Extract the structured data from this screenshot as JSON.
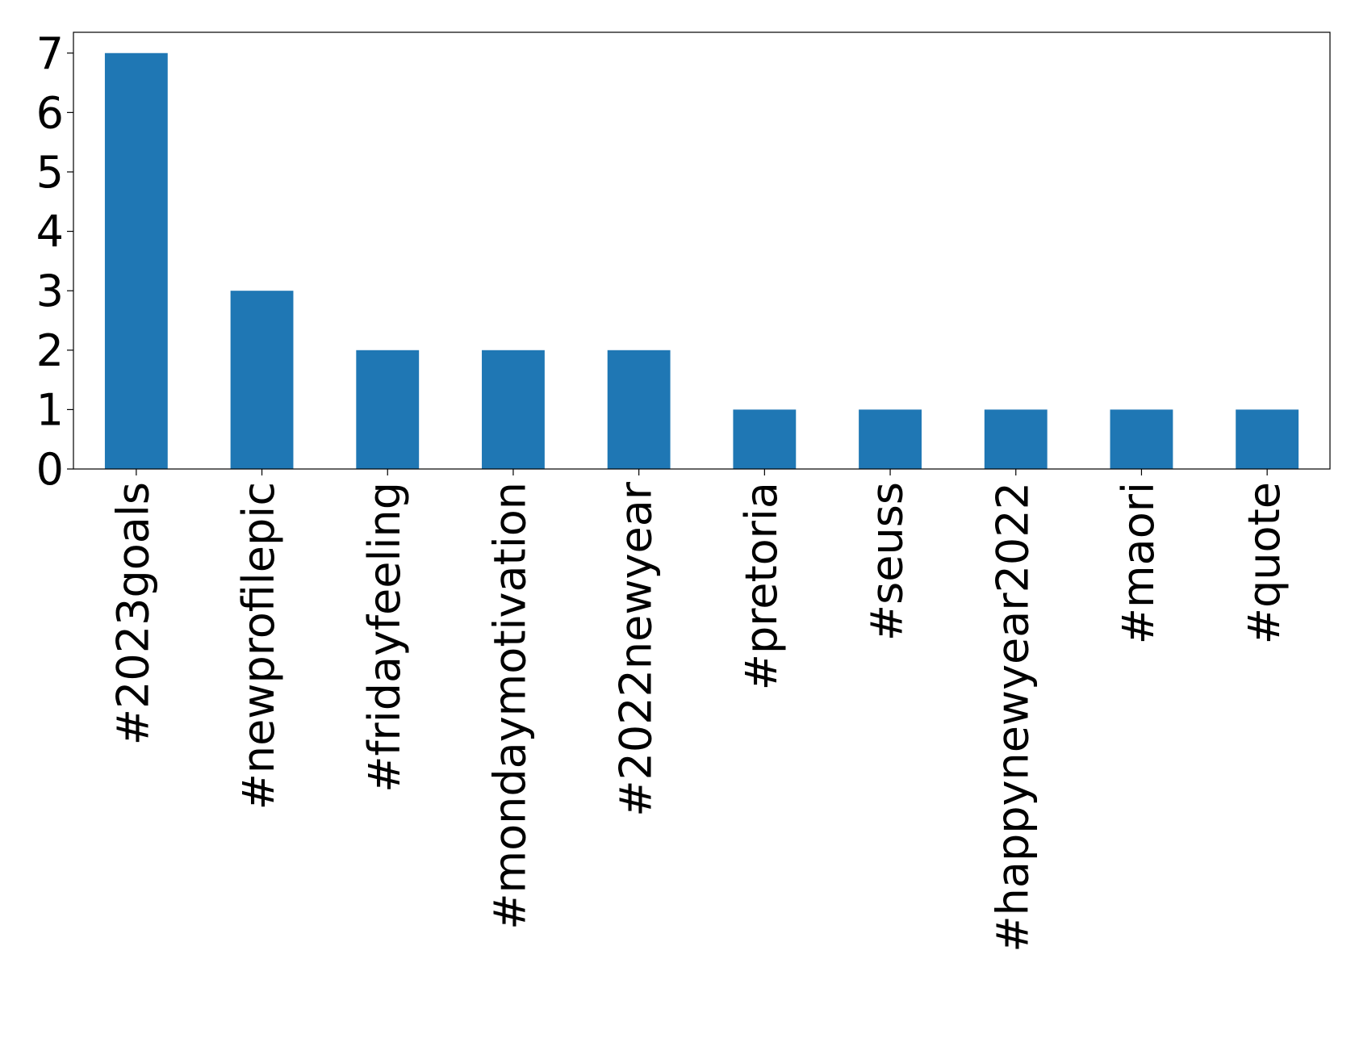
{
  "chart_data": {
    "type": "bar",
    "categories": [
      "#2023goals",
      "#newprofilepic",
      "#fridayfeeling",
      "#mondaymotivation",
      "#2022newyear",
      "#pretoria",
      "#seuss",
      "#happynewyear2022",
      "#maori",
      "#quote"
    ],
    "values": [
      7,
      3,
      2,
      2,
      2,
      1,
      1,
      1,
      1,
      1
    ],
    "color": "#1f77b4",
    "ylim": [
      0,
      7.35
    ],
    "yticks": [
      0,
      1,
      2,
      3,
      4,
      5,
      6,
      7
    ],
    "grid": false
  }
}
